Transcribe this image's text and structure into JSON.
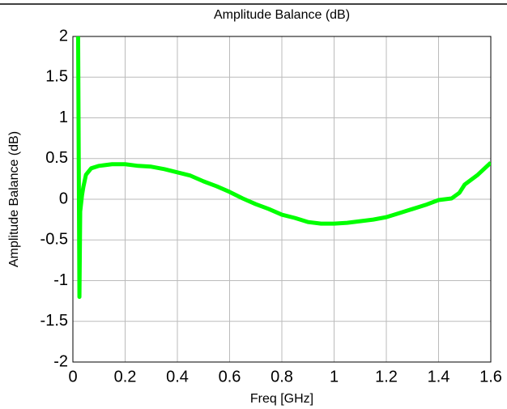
{
  "chart_data": {
    "type": "line",
    "title": "Amplitude Balance (dB)",
    "x_label": "Freq [GHz]",
    "y_label": "Amplitude Balance (dB)",
    "series": [
      {
        "name": "Amplitude Balance",
        "color": "#00ff00",
        "x": [
          0.02,
          0.025,
          0.028,
          0.035,
          0.04,
          0.05,
          0.07,
          0.1,
          0.15,
          0.2,
          0.25,
          0.3,
          0.35,
          0.4,
          0.45,
          0.5,
          0.55,
          0.6,
          0.65,
          0.7,
          0.75,
          0.8,
          0.85,
          0.9,
          0.95,
          1.0,
          1.05,
          1.1,
          1.15,
          1.2,
          1.25,
          1.3,
          1.35,
          1.4,
          1.45,
          1.48,
          1.5,
          1.55,
          1.6
        ],
        "values": [
          2,
          -1.2,
          -0.15,
          0.05,
          0.15,
          0.3,
          0.38,
          0.41,
          0.43,
          0.43,
          0.41,
          0.4,
          0.37,
          0.33,
          0.29,
          0.22,
          0.16,
          0.09,
          0.01,
          -0.06,
          -0.12,
          -0.19,
          -0.23,
          -0.28,
          -0.3,
          -0.3,
          -0.29,
          -0.27,
          -0.25,
          -0.22,
          -0.17,
          -0.12,
          -0.07,
          -0.01,
          0.01,
          0.08,
          0.18,
          0.3,
          0.45
        ]
      }
    ],
    "xlim": [
      0,
      1.6
    ],
    "xticks": [
      0,
      0.2,
      0.4,
      0.6,
      0.8,
      1,
      1.2,
      1.4,
      1.6
    ],
    "ylim": [
      -2,
      2
    ],
    "yticks": [
      -2,
      -1.5,
      -1,
      -0.5,
      0,
      0.5,
      1,
      1.5,
      2
    ],
    "grid": true
  }
}
